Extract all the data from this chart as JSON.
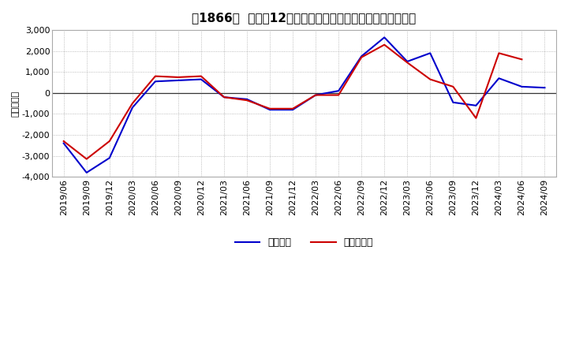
{
  "title_raw": "［1866］  利益の12か月移動合計の対前年同期増減額の推移",
  "ylabel": "（百万円）",
  "x_labels": [
    "2019/06",
    "2019/09",
    "2019/12",
    "2020/03",
    "2020/06",
    "2020/09",
    "2020/12",
    "2021/03",
    "2021/06",
    "2021/09",
    "2021/12",
    "2022/03",
    "2022/06",
    "2022/09",
    "2022/12",
    "2023/03",
    "2023/06",
    "2023/09",
    "2023/12",
    "2024/03",
    "2024/06",
    "2024/09"
  ],
  "keijo_rieki": [
    -2400,
    -3800,
    -3100,
    -700,
    550,
    600,
    650,
    -200,
    -300,
    -800,
    -800,
    -100,
    100,
    1750,
    2650,
    1500,
    1900,
    -450,
    -600,
    700,
    300,
    250
  ],
  "touki_junrieki": [
    -2300,
    -3150,
    -2300,
    -500,
    800,
    750,
    800,
    -200,
    -350,
    -750,
    -750,
    -100,
    -100,
    1700,
    2300,
    1450,
    650,
    300,
    -1200,
    1900,
    1600,
    null
  ],
  "line_color_blue": "#0000cc",
  "line_color_red": "#cc0000",
  "bg_color": "#ffffff",
  "plot_bg_color": "#ffffff",
  "grid_color": "#aaaaaa",
  "ylim": [
    -4000,
    3000
  ],
  "yticks": [
    -4000,
    -3000,
    -2000,
    -1000,
    0,
    1000,
    2000,
    3000
  ],
  "legend_labels": [
    "経常利益",
    "当期純利益"
  ],
  "title_fontsize": 11,
  "axis_fontsize": 8,
  "legend_fontsize": 9
}
